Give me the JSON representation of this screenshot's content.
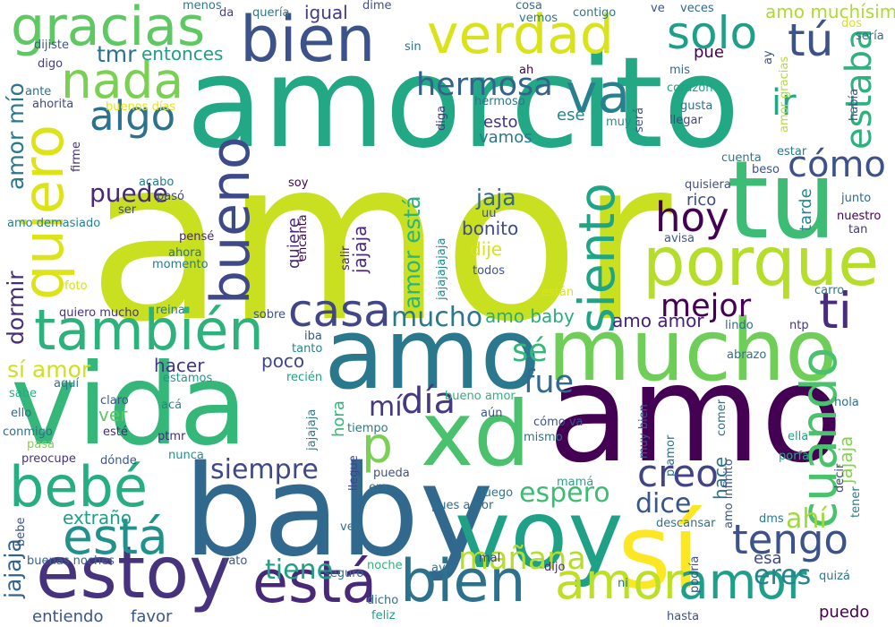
{
  "words": [
    {
      "text": "amor",
      "color": "#c8e020"
    },
    {
      "text": "amorcito",
      "color": "#22a884"
    },
    {
      "text": "amo",
      "color": "#440154"
    },
    {
      "text": "baby",
      "color": "#31688e"
    },
    {
      "text": "vida",
      "color": "#35b779"
    },
    {
      "text": "mucho",
      "color": "#6ece58"
    },
    {
      "text": "amo",
      "color": "#2a788e"
    },
    {
      "text": "voy",
      "color": "#1fa187"
    },
    {
      "text": "tu",
      "color": "#3cbc75"
    },
    {
      "text": "xd",
      "color": "#4ac16d"
    },
    {
      "text": "sí",
      "color": "#fde725"
    },
    {
      "text": "porque",
      "color": "#b5de2b"
    },
    {
      "text": "estoy",
      "color": "#46327e"
    },
    {
      "text": "bien",
      "color": "#3b528b"
    },
    {
      "text": "verdad",
      "color": "#dae319"
    },
    {
      "text": "también",
      "color": "#2db27d"
    },
    {
      "text": "bebé",
      "color": "#26ad81"
    },
    {
      "text": "quiero",
      "color": "#dde318"
    },
    {
      "text": "bueno",
      "color": "#3e4989"
    },
    {
      "text": "gracias",
      "color": "#5ec962"
    },
    {
      "text": "va",
      "color": "#27808e"
    },
    {
      "text": "nada",
      "color": "#7ad151"
    },
    {
      "text": "está",
      "color": "#482878"
    },
    {
      "text": "bien",
      "color": "#2c728e"
    },
    {
      "text": "amor",
      "color": "#bddf26"
    },
    {
      "text": "amor",
      "color": "#1f9e89"
    },
    {
      "text": "está",
      "color": "#21918c"
    },
    {
      "text": "siento",
      "color": "#20a486"
    },
    {
      "text": "cuando",
      "color": "#4ac16d"
    },
    {
      "text": "p",
      "color": "#7ad151"
    },
    {
      "text": "hoy",
      "color": "#440154"
    },
    {
      "text": "ti",
      "color": "#472d7b"
    },
    {
      "text": "casa",
      "color": "#404688"
    },
    {
      "text": "solo",
      "color": "#1f9e89"
    },
    {
      "text": "tú",
      "color": "#3b528b"
    },
    {
      "text": "tengo",
      "color": "#3b528b"
    },
    {
      "text": "algo",
      "color": "#2c728e"
    },
    {
      "text": "cómo",
      "color": "#3b528b"
    },
    {
      "text": "creo",
      "color": "#414487"
    },
    {
      "text": "día",
      "color": "#443983"
    },
    {
      "text": "ir",
      "color": "#22a884"
    },
    {
      "text": "estaba",
      "color": "#2db27d"
    },
    {
      "text": "hermosa",
      "color": "#33638d"
    },
    {
      "text": "mejor",
      "color": "#440154"
    },
    {
      "text": "mañana",
      "color": "#b5de2b"
    },
    {
      "text": "siempre",
      "color": "#3e4989"
    },
    {
      "text": "fue",
      "color": "#306a8e"
    },
    {
      "text": "sé",
      "color": "#35b779"
    },
    {
      "text": "mí",
      "color": "#443983"
    },
    {
      "text": "dice",
      "color": "#39568c"
    },
    {
      "text": "espero",
      "color": "#3dbc74"
    },
    {
      "text": "tiene",
      "color": "#1fa187"
    },
    {
      "text": "eres",
      "color": "#25848e"
    },
    {
      "text": "ahí",
      "color": "#9fda3a"
    },
    {
      "text": "mucho",
      "color": "#2a788e"
    },
    {
      "text": "puede",
      "color": "#482878"
    },
    {
      "text": "dormir",
      "color": "#472d7b"
    },
    {
      "text": "sí amor",
      "color": "#d0e11c"
    },
    {
      "text": "jajaja",
      "color": "#33638d"
    },
    {
      "text": "amor mío",
      "color": "#2a788e"
    },
    {
      "text": "amor está",
      "color": "#2db27d"
    },
    {
      "text": "tmr",
      "color": "#2d708e"
    },
    {
      "text": "entonces",
      "color": "#1f9e89"
    },
    {
      "text": "igual",
      "color": "#443983"
    },
    {
      "text": "amo muchísimo",
      "color": "#addc30"
    },
    {
      "text": "amo baby",
      "color": "#26ad81"
    },
    {
      "text": "amo amor",
      "color": "#482173"
    },
    {
      "text": "jaja",
      "color": "#31688e"
    },
    {
      "text": "bonito",
      "color": "#3e4989"
    },
    {
      "text": "dije",
      "color": "#d8e219"
    },
    {
      "text": "hacer",
      "color": "#453781"
    },
    {
      "text": "poco",
      "color": "#404688"
    },
    {
      "text": "ver",
      "color": "#5ec962"
    },
    {
      "text": "extraño",
      "color": "#1f9e89"
    },
    {
      "text": "esto",
      "color": "#46337e"
    },
    {
      "text": "vamos",
      "color": "#2a788e"
    },
    {
      "text": "jajaja",
      "color": "#482878"
    },
    {
      "text": "hace",
      "color": "#2c728e"
    },
    {
      "text": "jajaja",
      "color": "#84d44b"
    },
    {
      "text": "pue",
      "color": "#440154"
    },
    {
      "text": "ese",
      "color": "#24868e"
    },
    {
      "text": "tarde",
      "color": "#24878e"
    },
    {
      "text": "rico",
      "color": "#3e4989"
    },
    {
      "text": "hora",
      "color": "#35b779"
    },
    {
      "text": "quiere",
      "color": "#482878"
    },
    {
      "text": "entiendo",
      "color": "#3a548c"
    },
    {
      "text": "favor",
      "color": "#39568c"
    },
    {
      "text": "puedo",
      "color": "#440154"
    },
    {
      "text": "esa",
      "color": "#404688"
    },
    {
      "text": "quisiera",
      "color": "#3d4e8a"
    },
    {
      "text": "junto",
      "color": "#31688e"
    },
    {
      "text": "nuestro",
      "color": "#440154"
    },
    {
      "text": "tan",
      "color": "#453781"
    },
    {
      "text": "avisa",
      "color": "#38598c"
    },
    {
      "text": "lindo",
      "color": "#2d708e"
    },
    {
      "text": "ntp",
      "color": "#46337e"
    },
    {
      "text": "amo demasiado",
      "color": "#26828e"
    },
    {
      "text": "buenos días",
      "color": "#e5e419"
    },
    {
      "text": "acabo",
      "color": "#2a788e"
    },
    {
      "text": "pasó",
      "color": "#3e4989"
    },
    {
      "text": "soy",
      "color": "#440154"
    },
    {
      "text": "ser",
      "color": "#3e4989"
    },
    {
      "text": "pensé",
      "color": "#482475"
    },
    {
      "text": "encanta",
      "color": "#440154"
    },
    {
      "text": "ahora",
      "color": "#2d708e"
    },
    {
      "text": "momento",
      "color": "#2a788e"
    },
    {
      "text": "salir",
      "color": "#482173"
    },
    {
      "text": "foto",
      "color": "#d2e21b"
    },
    {
      "text": "quiero mucho",
      "color": "#46327e"
    },
    {
      "text": "reina",
      "color": "#2a788e"
    },
    {
      "text": "sobre",
      "color": "#3b528b"
    },
    {
      "text": "iba",
      "color": "#3a548c"
    },
    {
      "text": "tanto",
      "color": "#24868e"
    },
    {
      "text": "recién",
      "color": "#1fa187"
    },
    {
      "text": "estamos",
      "color": "#1f988b"
    },
    {
      "text": "aquí",
      "color": "#2c728e"
    },
    {
      "text": "sabe",
      "color": "#25ab82"
    },
    {
      "text": "claro",
      "color": "#3b528b"
    },
    {
      "text": "acá",
      "color": "#23898e"
    },
    {
      "text": "ello",
      "color": "#31688e"
    },
    {
      "text": "conmigo",
      "color": "#2d708e"
    },
    {
      "text": "esté",
      "color": "#482878"
    },
    {
      "text": "ptmr",
      "color": "#472d7b"
    },
    {
      "text": "pasa",
      "color": "#84d44b"
    },
    {
      "text": "preocupe",
      "color": "#46327e"
    },
    {
      "text": "dónde",
      "color": "#38598c"
    },
    {
      "text": "nunca",
      "color": "#21918c"
    },
    {
      "text": "menos",
      "color": "#2a788e"
    },
    {
      "text": "da",
      "color": "#433e85"
    },
    {
      "text": "quería",
      "color": "#2a788e"
    },
    {
      "text": "dime",
      "color": "#3b528b"
    },
    {
      "text": "cosa",
      "color": "#2d708e"
    },
    {
      "text": "vemos",
      "color": "#2a788e"
    },
    {
      "text": "contigo",
      "color": "#2a788e"
    },
    {
      "text": "ve",
      "color": "#3b528b"
    },
    {
      "text": "veces",
      "color": "#31688e"
    },
    {
      "text": "dos",
      "color": "#d8e219"
    },
    {
      "text": "sería",
      "color": "#2d708e"
    },
    {
      "text": "dijiste",
      "color": "#38598c"
    },
    {
      "text": "sin",
      "color": "#2c728e"
    },
    {
      "text": "digo",
      "color": "#433e85"
    },
    {
      "text": "ah",
      "color": "#440154"
    },
    {
      "text": "mis",
      "color": "#31688e"
    },
    {
      "text": "ay",
      "color": "#3b528b"
    },
    {
      "text": "ante",
      "color": "#2c728e"
    },
    {
      "text": "corazón",
      "color": "#1fa187"
    },
    {
      "text": "amor gracias",
      "color": "#b5de2b"
    },
    {
      "text": "ahorita",
      "color": "#3e4989"
    },
    {
      "text": "hermoso",
      "color": "#2a788e"
    },
    {
      "text": "gusta",
      "color": "#2d708e"
    },
    {
      "text": "había",
      "color": "#3b528b"
    },
    {
      "text": "otro",
      "color": "#22a884"
    },
    {
      "text": "muy",
      "color": "#21918c"
    },
    {
      "text": "llegar",
      "color": "#404688"
    },
    {
      "text": "diga",
      "color": "#453781"
    },
    {
      "text": "será",
      "color": "#3b528b"
    },
    {
      "text": "firme",
      "color": "#46327e"
    },
    {
      "text": "cuenta",
      "color": "#2a788e"
    },
    {
      "text": "beso",
      "color": "#3b528b"
    },
    {
      "text": "estar",
      "color": "#2a788e"
    },
    {
      "text": "uu",
      "color": "#3b528b"
    },
    {
      "text": "jajajajajaja",
      "color": "#23898e"
    },
    {
      "text": "todos",
      "color": "#3b528b"
    },
    {
      "text": "están",
      "color": "#dde318"
    },
    {
      "text": "carro",
      "color": "#2a788e"
    },
    {
      "text": "abrazo",
      "color": "#2c728e"
    },
    {
      "text": "hola",
      "color": "#2c728e"
    },
    {
      "text": "ella",
      "color": "#1fa187"
    },
    {
      "text": "porfa",
      "color": "#22a884"
    },
    {
      "text": "tiempo",
      "color": "#2a788e"
    },
    {
      "text": "aún",
      "color": "#3b528b"
    },
    {
      "text": "cómo va",
      "color": "#3b528b"
    },
    {
      "text": "mismo",
      "color": "#2c728e"
    },
    {
      "text": "muy bien",
      "color": "#3b528b"
    },
    {
      "text": "comer",
      "color": "#2d708e"
    },
    {
      "text": "jajajaja",
      "color": "#2a788e"
    },
    {
      "text": "bueno amor",
      "color": "#2db27d"
    },
    {
      "text": "llegue",
      "color": "#404688"
    },
    {
      "text": "pueda",
      "color": "#3b528b"
    },
    {
      "text": "era",
      "color": "#2c728e"
    },
    {
      "text": "mamá",
      "color": "#22a884"
    },
    {
      "text": "p amor",
      "color": "#2d708e"
    },
    {
      "text": "amo infinito",
      "color": "#38598c"
    },
    {
      "text": "dms",
      "color": "#2a788e"
    },
    {
      "text": "decir",
      "color": "#3e4989"
    },
    {
      "text": "tener",
      "color": "#2a788e"
    },
    {
      "text": "descansar",
      "color": "#2c728e"
    },
    {
      "text": "luego",
      "color": "#2a788e"
    },
    {
      "text": "pues amor",
      "color": "#2d708e"
    },
    {
      "text": "veo",
      "color": "#2c728e"
    },
    {
      "text": "bebe",
      "color": "#3b528b"
    },
    {
      "text": "buenas noches",
      "color": "#33638d"
    },
    {
      "text": "rato",
      "color": "#38598c"
    },
    {
      "text": "seguro",
      "color": "#2c728e"
    },
    {
      "text": "noche",
      "color": "#2db27d"
    },
    {
      "text": "ayer",
      "color": "#2c728e"
    },
    {
      "text": "mal",
      "color": "#433e85"
    },
    {
      "text": "dijo",
      "color": "#472d7b"
    },
    {
      "text": "ni",
      "color": "#2a788e"
    },
    {
      "text": "podría",
      "color": "#3b528b"
    },
    {
      "text": "quizá",
      "color": "#2a788e"
    },
    {
      "text": "dicho",
      "color": "#2c728e"
    },
    {
      "text": "feliz",
      "color": "#1fa187"
    },
    {
      "text": "hasta",
      "color": "#3b528b"
    }
  ]
}
